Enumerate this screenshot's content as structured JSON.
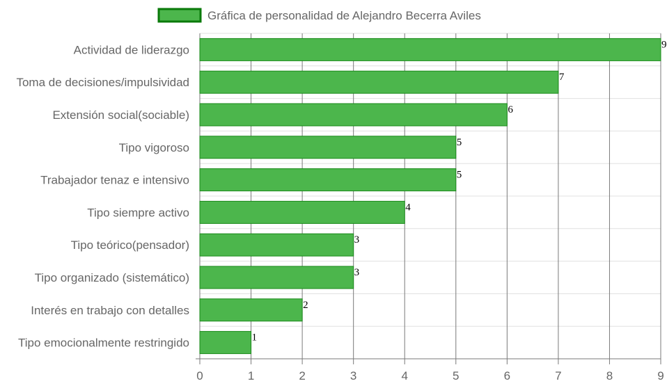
{
  "chart_data": {
    "type": "bar",
    "orientation": "horizontal",
    "legend": {
      "label": "Gráfica de personalidad de Alejandro Becerra Aviles",
      "position": "top"
    },
    "categories": [
      "Actividad de liderazgo",
      "Toma de decisiones/impulsividad",
      "Extensión social(sociable)",
      "Tipo vigoroso",
      "Trabajador tenaz e intensivo",
      "Tipo siempre activo",
      "Tipo teórico(pensador)",
      "Tipo organizado (sistemático)",
      "Interés en trabajo con detalles",
      "Tipo emocionalmente restringido"
    ],
    "series": [
      {
        "name": "Gráfica de personalidad de Alejandro Becerra Aviles",
        "values": [
          9,
          7,
          6,
          5,
          5,
          4,
          3,
          3,
          2,
          1
        ]
      }
    ],
    "value_labels": [
      "9",
      "7",
      "6",
      "5",
      "5",
      "4",
      "3",
      "3",
      "2",
      "1"
    ],
    "x_ticks": [
      "0",
      "1",
      "2",
      "3",
      "4",
      "5",
      "6",
      "7",
      "8",
      "9"
    ],
    "xlim": [
      0,
      9
    ],
    "grid": true,
    "colors": {
      "bar_fill": "#4cb64c",
      "bar_border": "#1a8a1a",
      "legend_border": "#0a7a0a",
      "grid_vertical": "#7a7a7a",
      "grid_horizontal": "#e0e0e0"
    }
  }
}
